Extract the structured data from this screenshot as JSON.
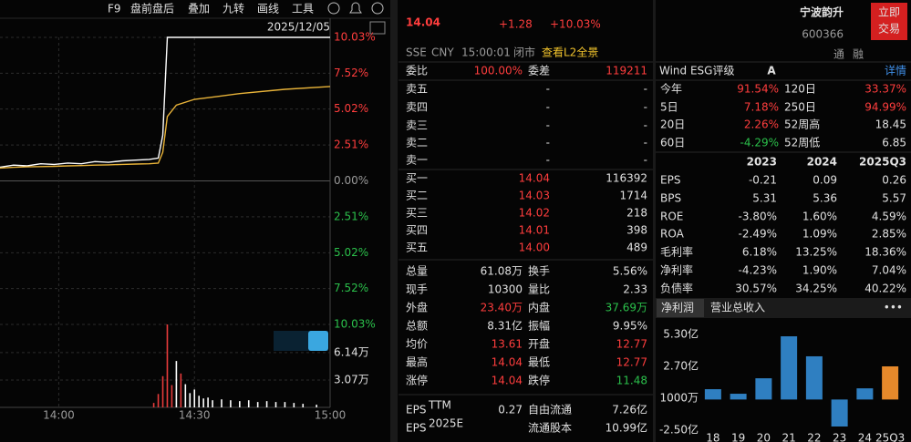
{
  "toolbar": {
    "items": [
      "F9",
      "盘前盘后",
      "叠加",
      "九转",
      "画线",
      "工具"
    ]
  },
  "chart_data": [
    {
      "type": "line",
      "date": "2025/12/05",
      "x": [
        827,
        830,
        833,
        836,
        839,
        842,
        845,
        848,
        851,
        854,
        857,
        860,
        862,
        863,
        864,
        866,
        870,
        875,
        880,
        890,
        900
      ],
      "series": [
        {
          "color": "#ffffff",
          "values": [
            0.96,
            1.1,
            1.05,
            1.2,
            1.15,
            1.25,
            1.2,
            1.35,
            1.3,
            1.4,
            1.45,
            1.5,
            1.6,
            3.2,
            10.03,
            10.03,
            10.03,
            10.03,
            10.03,
            10.03,
            10.03
          ]
        },
        {
          "color": "#e8b339",
          "values": [
            0.9,
            0.95,
            0.98,
            1.0,
            1.02,
            1.05,
            1.07,
            1.1,
            1.12,
            1.15,
            1.18,
            1.2,
            1.25,
            2.0,
            4.5,
            5.3,
            5.7,
            5.9,
            6.1,
            6.4,
            6.6
          ]
        }
      ],
      "xlim": [
        827,
        900
      ],
      "ylim": [
        -10.03,
        10.03
      ],
      "yticks": [
        {
          "value": 10.03,
          "label": "10.03%"
        },
        {
          "value": 7.52,
          "label": "7.52%"
        },
        {
          "value": 5.02,
          "label": "5.02%"
        },
        {
          "value": 2.51,
          "label": "2.51%"
        },
        {
          "value": 0,
          "label": "0.00%"
        },
        {
          "value": -2.51,
          "label": "2.51%"
        },
        {
          "value": -5.02,
          "label": "5.02%"
        },
        {
          "value": -7.52,
          "label": "7.52%"
        },
        {
          "value": -10.03,
          "label": "10.03%"
        }
      ],
      "grid": true
    },
    {
      "type": "bar",
      "x": [
        861,
        862,
        863,
        864,
        865,
        866,
        867,
        868,
        869,
        870,
        871,
        872,
        873,
        874,
        876,
        878,
        880,
        882,
        884,
        886,
        888,
        890,
        892,
        894,
        897
      ],
      "values": [
        0.5,
        1.5,
        3.5,
        9.3,
        2.5,
        5.2,
        3.8,
        2.6,
        1.6,
        2.0,
        1.3,
        1.0,
        1.1,
        0.8,
        0.9,
        0.8,
        0.7,
        0.8,
        0.6,
        0.7,
        0.6,
        0.6,
        0.5,
        0.4,
        0.3
      ],
      "colors": [
        "#e83b3b",
        "#e83b3b",
        "#e83b3b",
        "#e83b3b",
        "#e83b3b",
        "#ffffff",
        "#e83b3b",
        "#ffffff",
        "#ffffff",
        "#ffffff",
        "#ffffff",
        "#ffffff",
        "#ffffff",
        "#ffffff",
        "#ffffff",
        "#ffffff",
        "#ffffff",
        "#ffffff",
        "#ffffff",
        "#ffffff",
        "#ffffff",
        "#ffffff",
        "#ffffff",
        "#ffffff",
        "#ffffff"
      ],
      "xlim": [
        827,
        900
      ],
      "xticks": [
        {
          "value": 840,
          "label": "14:00"
        },
        {
          "value": 870,
          "label": "14:30"
        },
        {
          "value": 900,
          "label": "15:00"
        }
      ],
      "ylim": [
        0,
        9.3
      ],
      "yticks": [
        {
          "value": 6.14,
          "label": "6.14万"
        },
        {
          "value": 3.07,
          "label": "3.07万"
        }
      ]
    },
    {
      "type": "bar",
      "categories": [
        "18",
        "19",
        "20",
        "21",
        "22",
        "23",
        "24",
        "25Q3"
      ],
      "values": [
        0.84,
        0.47,
        1.73,
        5.15,
        3.52,
        -2.2,
        0.91,
        2.7
      ],
      "colors": [
        "#2f7fc1",
        "#2f7fc1",
        "#2f7fc1",
        "#2f7fc1",
        "#2f7fc1",
        "#2f7fc1",
        "#2f7fc1",
        "#e6892b"
      ],
      "ylim": [
        -2.72,
        5.82
      ],
      "yticks": [
        {
          "value": 5.3,
          "label": "5.30亿"
        },
        {
          "value": 2.7,
          "label": "2.70亿"
        },
        {
          "value": 0.1,
          "label": "1000万"
        },
        {
          "value": -2.5,
          "label": "-2.50亿"
        }
      ]
    }
  ],
  "quote": {
    "price": "14.04",
    "change": "+1.28",
    "pct": "+10.03%",
    "meta": [
      "SSE",
      "CNY",
      "15:00:01",
      "闭市"
    ],
    "l2": "查看L2全景"
  },
  "orderbook": {
    "ratio_label": "委比",
    "ratio": "100.00%",
    "diff_label": "委差",
    "diff": "119211",
    "asks": [
      [
        "卖五",
        "-",
        "-"
      ],
      [
        "卖四",
        "-",
        "-"
      ],
      [
        "卖三",
        "-",
        "-"
      ],
      [
        "卖二",
        "-",
        "-"
      ],
      [
        "卖一",
        "-",
        "-"
      ]
    ],
    "bids": [
      [
        "买一",
        "14.04",
        "116392"
      ],
      [
        "买二",
        "14.03",
        "1714"
      ],
      [
        "买三",
        "14.02",
        "218"
      ],
      [
        "买四",
        "14.01",
        "398"
      ],
      [
        "买五",
        "14.00",
        "489"
      ]
    ]
  },
  "stats": {
    "rows": [
      [
        "总量",
        "61.08万",
        "换手",
        "5.56%"
      ],
      [
        "现手",
        "10300",
        "量比",
        "2.33"
      ],
      [
        "外盘",
        "23.40万",
        "内盘",
        "37.69万"
      ],
      [
        "总额",
        "8.31亿",
        "振幅",
        "9.95%"
      ],
      [
        "均价",
        "13.61",
        "开盘",
        "12.77"
      ],
      [
        "最高",
        "14.04",
        "最低",
        "12.77"
      ],
      [
        "涨停",
        "14.04",
        "跌停",
        "11.48"
      ]
    ],
    "eps": [
      {
        "label": "EPS",
        "sup": "TTM",
        "value": "0.27",
        "k": "自由流通",
        "v": "7.26亿"
      },
      {
        "label": "EPS",
        "sup": "2025E",
        "k": "流通股本",
        "v": "10.99亿"
      }
    ]
  },
  "profile": {
    "name": "宁波韵升",
    "code": "600366",
    "button": [
      "立即",
      "交易"
    ],
    "badges": [
      "通",
      "融"
    ],
    "esg_label": "Wind ESG评级",
    "esg": "A",
    "detail": "详情",
    "perf": [
      [
        "今年",
        "91.54%",
        "120日",
        "33.37%"
      ],
      [
        "5日",
        "7.18%",
        "250日",
        "94.99%"
      ],
      [
        "20日",
        "2.26%",
        "52周高",
        "18.45"
      ],
      [
        "60日",
        "-4.29%",
        "52周低",
        "6.85"
      ]
    ]
  },
  "fin": {
    "header": [
      "2023",
      "2024",
      "2025Q3"
    ],
    "rows": [
      [
        "EPS",
        "-0.21",
        "0.09",
        "0.26"
      ],
      [
        "BPS",
        "5.31",
        "5.36",
        "5.57"
      ],
      [
        "ROE",
        "-3.80%",
        "1.60%",
        "4.59%"
      ],
      [
        "ROA",
        "-2.49%",
        "1.09%",
        "2.85%"
      ],
      [
        "毛利率",
        "6.18%",
        "13.25%",
        "18.36%"
      ],
      [
        "净利率",
        "-4.23%",
        "1.90%",
        "7.04%"
      ],
      [
        "负债率",
        "30.57%",
        "34.25%",
        "40.22%"
      ]
    ],
    "tabs": [
      "净利润",
      "营业总收入"
    ],
    "more": "•••"
  }
}
